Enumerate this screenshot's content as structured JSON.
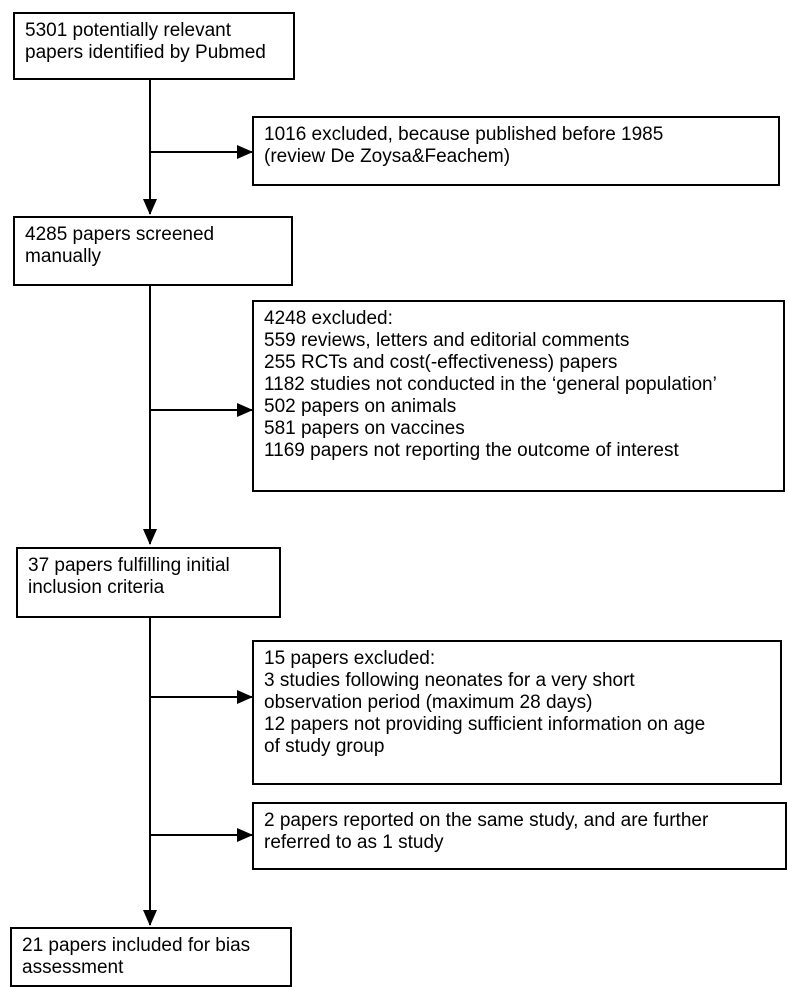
{
  "flowchart": {
    "identified": {
      "lines": [
        "5301 potentially relevant",
        "papers identified by Pubmed"
      ]
    },
    "excluded_1985": {
      "lines": [
        "1016 excluded, because published before 1985",
        "(review De Zoysa&Feachem)"
      ]
    },
    "screened": {
      "lines": [
        "4285 papers screened",
        "manually"
      ]
    },
    "excluded_screening": {
      "lines": [
        "4248 excluded:",
        "559 reviews, letters and editorial comments",
        "255 RCTs and cost(-effectiveness) papers",
        "1182 studies not conducted in the ‘general population’",
        "502 papers on animals",
        "581 papers on vaccines",
        "1169 papers not reporting the outcome of interest"
      ]
    },
    "fulfilling": {
      "lines": [
        "37 papers fulfilling initial",
        "inclusion criteria"
      ]
    },
    "excluded_15": {
      "lines": [
        "15 papers excluded:",
        "3 studies following neonates for a very short",
        "observation period (maximum 28 days)",
        "12 papers not providing sufficient information on age",
        "of study group"
      ]
    },
    "same_study": {
      "lines": [
        "2 papers reported on the same study, and are further",
        "referred to as 1 study"
      ]
    },
    "included": {
      "lines": [
        "21 papers included for bias",
        "assessment"
      ]
    }
  }
}
